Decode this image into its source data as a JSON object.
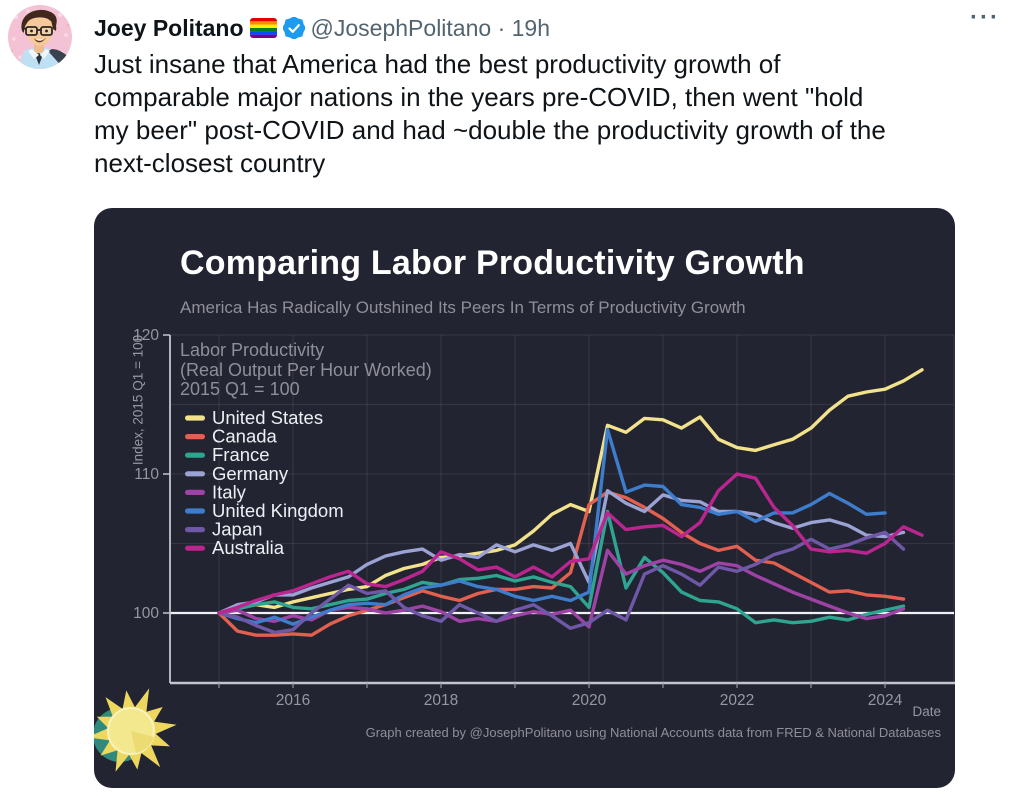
{
  "tweet": {
    "author_name": "Joey Politano",
    "handle_line": "@JosephPolitano · 19h",
    "handle": "@JosephPolitano",
    "timestamp": "19h",
    "more_label": "···",
    "body": "Just insane that America had the best productivity growth of comparable major nations in the years pre-COVID, then went \"hold my beer\" post-COVID and had ~double the productivity growth of the next-closest country",
    "verified_color": "#1d9bf0",
    "flag_colors": [
      "#e50000",
      "#ff8d00",
      "#ffee00",
      "#028121",
      "#004cff",
      "#770088"
    ]
  },
  "chart_data": {
    "type": "line",
    "title": "Comparing Labor Productivity Growth",
    "subtitle": "America Has Radically Outshined Its Peers In Terms of Productivity Growth",
    "annotation": [
      "Labor Productivity",
      "(Real Output Per Hour Worked)",
      "2015 Q1 = 100"
    ],
    "ylabel": "Index, 2015 Q1 = 100",
    "xlabel": "Date",
    "footer": "Graph created by @JosephPolitano using National Accounts data from FRED & National Databases",
    "x_start_year": 2015,
    "x_step_years": 0.25,
    "xlim": [
      2014.34,
      2024.93
    ],
    "ylim": [
      95,
      120
    ],
    "x_ticks": [
      2016,
      2018,
      2020,
      2022,
      2024
    ],
    "y_ticks": [
      100,
      110,
      120
    ],
    "grid_x_years": [
      2015,
      2016,
      2017,
      2018,
      2019,
      2020,
      2021,
      2022,
      2023,
      2024
    ],
    "grid_y_values": [
      105,
      110,
      115,
      120
    ],
    "baseline_value": 100,
    "legend_position": "top-left-inside",
    "grid": true,
    "series": [
      {
        "name": "United States",
        "color": "#f2e28c",
        "values": [
          100,
          100.4,
          100.6,
          100.4,
          100.8,
          101.1,
          101.4,
          101.7,
          101.9,
          102.7,
          103.2,
          103.5,
          104.0,
          104.1,
          104.3,
          104.5,
          104.9,
          105.9,
          107.1,
          107.8,
          107.3,
          113.5,
          113.0,
          114.0,
          113.9,
          113.3,
          114.1,
          112.5,
          111.9,
          111.7,
          112.1,
          112.5,
          113.3,
          114.6,
          115.6,
          115.9,
          116.1,
          116.7,
          117.5
        ]
      },
      {
        "name": "Canada",
        "color": "#e2604f",
        "values": [
          100,
          98.7,
          98.4,
          98.4,
          98.5,
          98.4,
          99.2,
          99.8,
          100.2,
          100.6,
          101.1,
          101.6,
          101.2,
          100.9,
          101.4,
          101.7,
          101.7,
          101.9,
          101.8,
          102.9,
          107.8,
          108.7,
          108.3,
          107.6,
          106.8,
          105.8,
          105.0,
          104.5,
          104.8,
          103.8,
          103.6,
          102.9,
          102.2,
          101.5,
          101.6,
          101.3,
          101.2,
          101.0
        ]
      },
      {
        "name": "France",
        "color": "#2ea491",
        "values": [
          100,
          100.3,
          100.6,
          100.8,
          100.4,
          100.3,
          100.6,
          100.9,
          101.0,
          101.4,
          101.7,
          102.2,
          102.0,
          102.4,
          102.5,
          102.7,
          102.3,
          102.6,
          102.2,
          101.9,
          100.4,
          107.3,
          101.8,
          104.0,
          102.9,
          101.5,
          100.9,
          100.8,
          100.3,
          99.3,
          99.5,
          99.3,
          99.4,
          99.7,
          99.5,
          99.9,
          100.2,
          100.5
        ]
      },
      {
        "name": "Germany",
        "color": "#9ba2d4",
        "values": [
          100,
          100.6,
          100.8,
          101.3,
          101.3,
          101.8,
          102.2,
          102.6,
          103.5,
          104.1,
          104.4,
          104.6,
          103.8,
          104.2,
          104.0,
          104.9,
          104.4,
          104.9,
          104.5,
          105.0,
          102.2,
          108.8,
          107.9,
          107.3,
          108.5,
          108.1,
          108.0,
          107.3,
          107.3,
          107.1,
          106.5,
          106.1,
          106.5,
          106.7,
          106.3,
          105.6,
          105.5,
          105.8
        ]
      },
      {
        "name": "Italy",
        "color": "#9e42a5",
        "values": [
          100,
          100.2,
          99.6,
          99.4,
          99.8,
          99.5,
          100.2,
          100.4,
          100.3,
          100.0,
          100.2,
          100.5,
          100.1,
          99.4,
          99.6,
          99.4,
          99.8,
          100.1,
          99.9,
          100.2,
          99.0,
          104.5,
          102.8,
          103.4,
          103.8,
          103.5,
          103.0,
          103.6,
          103.4,
          102.7,
          102.1,
          101.5,
          101.0,
          100.5,
          100.0,
          99.6,
          99.8,
          100.3
        ]
      },
      {
        "name": "United Kingdom",
        "color": "#3d7dcc",
        "values": [
          100,
          99.6,
          99.3,
          99.7,
          99.2,
          99.7,
          100.2,
          100.6,
          100.7,
          100.6,
          101.3,
          101.8,
          102.0,
          102.3,
          101.9,
          101.7,
          101.2,
          100.9,
          101.2,
          100.9,
          101.5,
          113.2,
          108.7,
          109.2,
          109.1,
          107.8,
          107.6,
          107.1,
          107.3,
          106.6,
          107.2,
          107.2,
          107.8,
          108.6,
          107.9,
          107.1,
          107.2
        ]
      },
      {
        "name": "Japan",
        "color": "#7058a8",
        "values": [
          100,
          99.7,
          99.1,
          98.6,
          98.8,
          100.0,
          101.0,
          102.0,
          101.4,
          101.6,
          100.4,
          99.8,
          99.4,
          100.6,
          100.0,
          99.4,
          100.2,
          100.6,
          99.8,
          98.9,
          99.3,
          100.2,
          99.5,
          102.8,
          103.4,
          102.8,
          102.0,
          103.3,
          103.0,
          103.5,
          104.2,
          104.6,
          105.3,
          104.6,
          104.9,
          105.4,
          105.8,
          104.6
        ]
      },
      {
        "name": "Australia",
        "color": "#bb2590",
        "values": [
          100,
          100.4,
          100.9,
          101.3,
          101.6,
          102.1,
          102.6,
          103.0,
          102.1,
          101.9,
          102.4,
          103.0,
          104.4,
          103.9,
          103.1,
          103.3,
          102.6,
          103.3,
          102.6,
          103.7,
          103.9,
          107.2,
          106.0,
          106.2,
          106.3,
          105.5,
          106.5,
          108.8,
          110.0,
          109.7,
          107.6,
          106.3,
          104.6,
          104.4,
          104.5,
          104.3,
          105.0,
          106.2,
          105.6
        ]
      }
    ],
    "theme": {
      "card_bg": "#232431",
      "grid": "rgba(255,255,255,0.08)",
      "axis": "#c2c4ce",
      "baseline": "#f0f1f4",
      "tick": "#9597a1",
      "muted": "#8e8f99",
      "legend_text": "#eceff4",
      "title": "#ffffff",
      "sun_yellow": "#eed75f",
      "sun_face": "#f4e88e",
      "sun_teal": "#2f8a7d"
    }
  }
}
